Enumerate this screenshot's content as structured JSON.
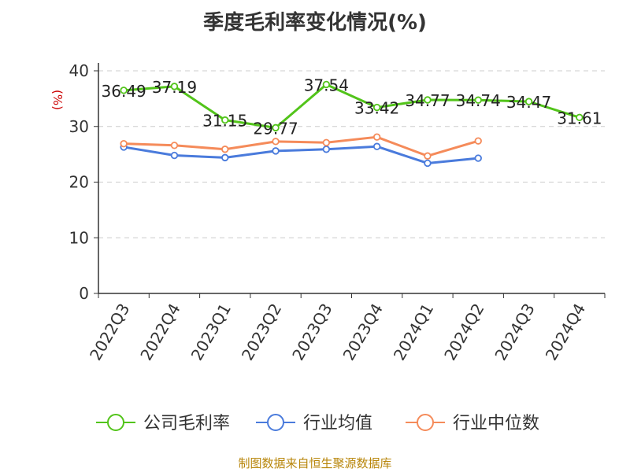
{
  "chart_data": {
    "type": "line",
    "title": "季度毛利率变化情况(%)",
    "ylabel": "(%)",
    "ylim": [
      0,
      40
    ],
    "yticks": [
      0,
      10,
      20,
      30,
      40
    ],
    "grid": true,
    "legend_position": "bottom",
    "categories": [
      "2022Q3",
      "2022Q4",
      "2023Q1",
      "2023Q2",
      "2023Q3",
      "2023Q4",
      "2024Q1",
      "2024Q2",
      "2024Q3",
      "2024Q4"
    ],
    "series": [
      {
        "name": "公司毛利率",
        "color": "#52c41a",
        "show_labels": true,
        "values": [
          36.49,
          37.19,
          31.15,
          29.77,
          37.54,
          33.42,
          34.77,
          34.74,
          34.47,
          31.61
        ]
      },
      {
        "name": "行业均值",
        "color": "#4a7bdc",
        "show_labels": false,
        "values": [
          26.3,
          24.8,
          24.4,
          25.6,
          25.9,
          26.4,
          23.4,
          24.3,
          null,
          null
        ]
      },
      {
        "name": "行业中位数",
        "color": "#f58b5a",
        "show_labels": false,
        "values": [
          26.9,
          26.6,
          25.9,
          27.3,
          27.1,
          28.1,
          24.7,
          27.4,
          null,
          null
        ]
      }
    ]
  },
  "footer": "制图数据来自恒生聚源数据库"
}
